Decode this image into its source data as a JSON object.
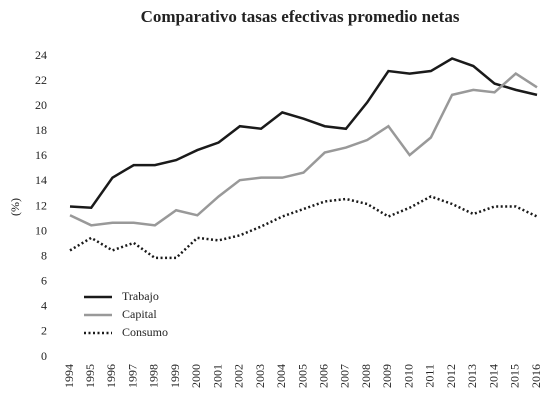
{
  "chart_data": {
    "type": "line",
    "title": "Comparativo tasas efectivas promedio netas",
    "y_label": "(%)",
    "categories": [
      "1994",
      "1995",
      "1996",
      "1997",
      "1998",
      "1999",
      "2000",
      "2001",
      "2002",
      "2003",
      "2004",
      "2005",
      "2006",
      "2007",
      "2008",
      "2009",
      "2010",
      "2011",
      "2012",
      "2013",
      "2014",
      "2015",
      "2016"
    ],
    "series": [
      {
        "name": "Trabajo",
        "color": "#1a1a1a",
        "style": "solid",
        "values": [
          12.0,
          11.9,
          14.3,
          15.3,
          15.3,
          15.7,
          16.5,
          17.1,
          18.4,
          18.2,
          19.5,
          19.0,
          18.4,
          18.2,
          20.3,
          22.8,
          22.6,
          22.8,
          23.8,
          23.2,
          21.8,
          21.3,
          20.9
        ]
      },
      {
        "name": "Capital",
        "color": "#999999",
        "style": "solid",
        "values": [
          11.3,
          10.5,
          10.7,
          10.7,
          10.5,
          11.7,
          11.3,
          12.8,
          14.1,
          14.3,
          14.3,
          14.7,
          16.3,
          16.7,
          17.3,
          18.4,
          16.1,
          17.5,
          20.9,
          21.3,
          21.1,
          22.6,
          21.5
        ]
      },
      {
        "name": "Consumo",
        "color": "#1a1a1a",
        "style": "dotted",
        "values": [
          8.5,
          9.5,
          8.5,
          9.1,
          7.9,
          7.9,
          9.5,
          9.3,
          9.7,
          10.4,
          11.2,
          11.8,
          12.4,
          12.6,
          12.2,
          11.2,
          11.9,
          12.8,
          12.2,
          11.4,
          12.0,
          12.0,
          11.2
        ]
      }
    ],
    "ylim": [
      0,
      24
    ],
    "yticks": [
      0,
      2,
      4,
      6,
      8,
      10,
      12,
      14,
      16,
      18,
      20,
      22,
      24
    ],
    "legend": "lower-left",
    "grid": false
  }
}
